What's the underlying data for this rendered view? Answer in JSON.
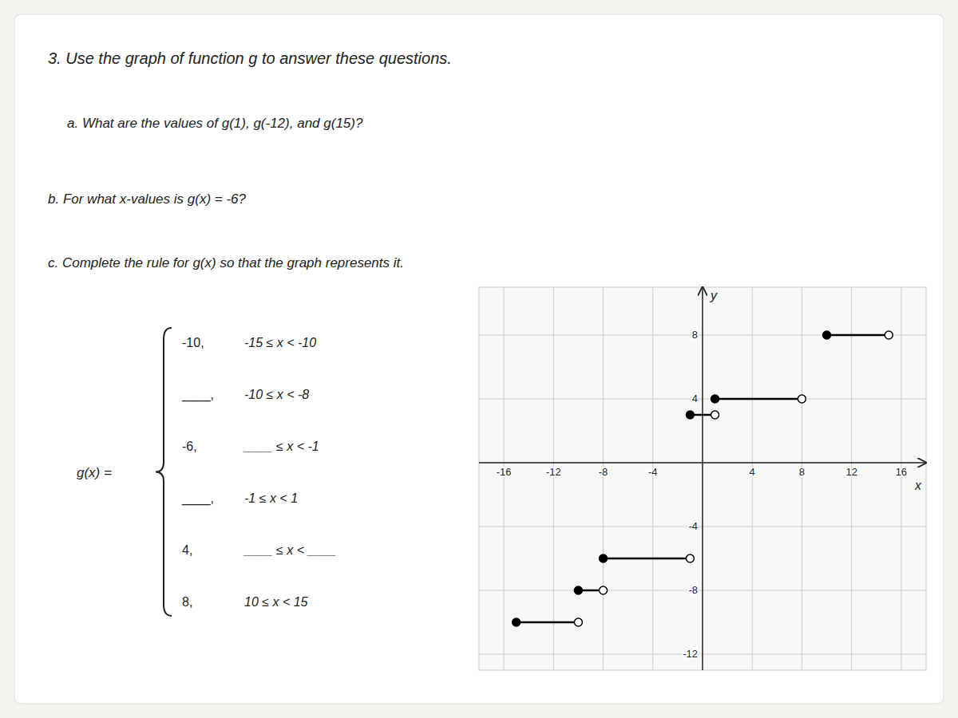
{
  "chart_data": {
    "type": "piecewise",
    "title": "3. Use the graph of function g to answer these questions.",
    "annotations": [
      "a. What are the values of g(1), g(-12), and g(15)?",
      "b. For what x-values is g(x) = -6?",
      "c. Complete the rule for g(x) so that the graph represents it."
    ],
    "rule_label": "g(x) =",
    "rule_lines": [
      {
        "value": "-10,",
        "condition": "-15 ≤ x < -10"
      },
      {
        "value": "____,",
        "condition": "-10 ≤ x < -8"
      },
      {
        "value": "-6,",
        "condition": "____ ≤ x < -1"
      },
      {
        "value": "____,",
        "condition": "-1 ≤ x < 1"
      },
      {
        "value": "4,",
        "condition": "____ ≤ x < ____"
      },
      {
        "value": "8,",
        "condition": "10 ≤ x < 15"
      }
    ],
    "xlabel": "x",
    "ylabel": "y",
    "color": "#000000",
    "grid": true,
    "series": [
      {
        "x": [
          -15,
          -10
        ],
        "values": [
          -10,
          -10
        ],
        "marker": "closed-open"
      },
      {
        "x": [
          -10,
          -8
        ],
        "values": [
          -8,
          -8
        ],
        "marker": "closed-open"
      },
      {
        "x": [
          -8,
          -1
        ],
        "values": [
          -6,
          -6
        ],
        "marker": "closed-open"
      },
      {
        "x": [
          -1,
          1
        ],
        "values": [
          3,
          3
        ],
        "marker": "closed-open"
      },
      {
        "x": [
          1,
          8
        ],
        "values": [
          4,
          4
        ],
        "marker": "closed-open"
      },
      {
        "x": [
          10,
          15
        ],
        "values": [
          8,
          8
        ],
        "marker": "closed-open"
      }
    ],
    "xlim": [
      -18,
      18
    ],
    "ylim": [
      -13,
      11
    ],
    "xticks": [
      -16,
      -12,
      -8,
      -4,
      4,
      8,
      12,
      16
    ],
    "yticks": [
      -12,
      -8,
      -4,
      4,
      8
    ]
  }
}
